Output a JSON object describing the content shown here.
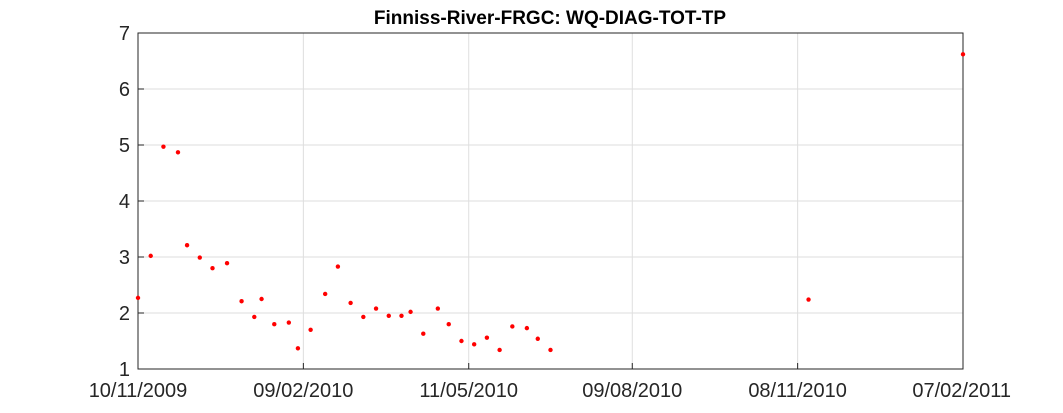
{
  "chart_data": {
    "type": "scatter",
    "title": "Finniss-River-FRGC: WQ-DIAG-TOT-TP",
    "xlabel": "",
    "ylabel": "",
    "x_type": "date",
    "xlim": [
      "2009-11-10",
      "2011-02-07"
    ],
    "ylim": [
      1,
      7
    ],
    "x_ticks": [
      {
        "date": "2009-11-10",
        "label": "10/11/2009"
      },
      {
        "date": "2010-02-09",
        "label": "09/02/2010"
      },
      {
        "date": "2010-05-11",
        "label": "11/05/2010"
      },
      {
        "date": "2010-08-09",
        "label": "09/08/2010"
      },
      {
        "date": "2010-11-08",
        "label": "08/11/2010"
      },
      {
        "date": "2011-02-07",
        "label": "07/02/2011"
      }
    ],
    "y_ticks": [
      1,
      2,
      3,
      4,
      5,
      6,
      7
    ],
    "grid": true,
    "legend": "none",
    "marker_color": "#ff0000",
    "series": [
      {
        "points": [
          {
            "x": "2009-11-10",
            "y": 2.27
          },
          {
            "x": "2009-11-17",
            "y": 3.02
          },
          {
            "x": "2009-11-24",
            "y": 4.97
          },
          {
            "x": "2009-12-02",
            "y": 4.87
          },
          {
            "x": "2009-12-07",
            "y": 3.21
          },
          {
            "x": "2009-12-14",
            "y": 2.99
          },
          {
            "x": "2009-12-21",
            "y": 2.8
          },
          {
            "x": "2009-12-29",
            "y": 2.89
          },
          {
            "x": "2010-01-06",
            "y": 2.21
          },
          {
            "x": "2010-01-13",
            "y": 1.93
          },
          {
            "x": "2010-01-17",
            "y": 2.25
          },
          {
            "x": "2010-01-24",
            "y": 1.8
          },
          {
            "x": "2010-02-01",
            "y": 1.83
          },
          {
            "x": "2010-02-06",
            "y": 1.37
          },
          {
            "x": "2010-02-13",
            "y": 1.7
          },
          {
            "x": "2010-02-21",
            "y": 2.34
          },
          {
            "x": "2010-02-28",
            "y": 2.83
          },
          {
            "x": "2010-03-07",
            "y": 2.18
          },
          {
            "x": "2010-03-14",
            "y": 1.93
          },
          {
            "x": "2010-03-21",
            "y": 2.08
          },
          {
            "x": "2010-03-28",
            "y": 1.95
          },
          {
            "x": "2010-04-04",
            "y": 1.95
          },
          {
            "x": "2010-04-09",
            "y": 2.02
          },
          {
            "x": "2010-04-16",
            "y": 1.63
          },
          {
            "x": "2010-04-24",
            "y": 2.08
          },
          {
            "x": "2010-04-30",
            "y": 1.8
          },
          {
            "x": "2010-05-07",
            "y": 1.5
          },
          {
            "x": "2010-05-14",
            "y": 1.44
          },
          {
            "x": "2010-05-21",
            "y": 1.56
          },
          {
            "x": "2010-05-28",
            "y": 1.34
          },
          {
            "x": "2010-06-04",
            "y": 1.76
          },
          {
            "x": "2010-06-12",
            "y": 1.73
          },
          {
            "x": "2010-06-18",
            "y": 1.54
          },
          {
            "x": "2010-06-25",
            "y": 1.34
          },
          {
            "x": "2010-11-14",
            "y": 2.24
          },
          {
            "x": "2011-02-07",
            "y": 6.62
          }
        ]
      }
    ]
  }
}
